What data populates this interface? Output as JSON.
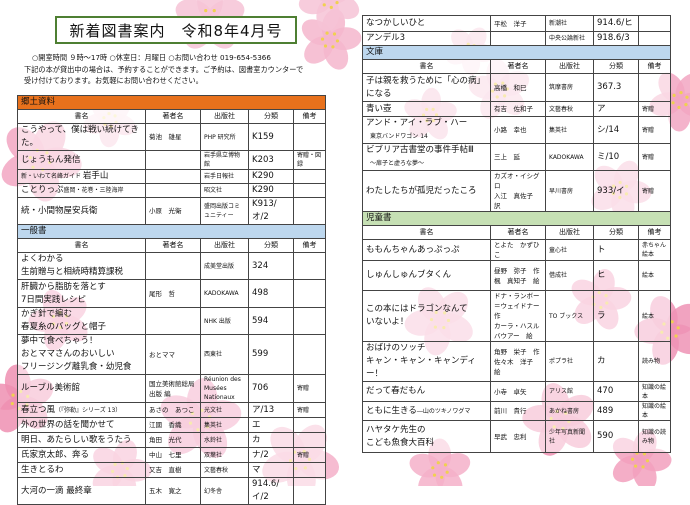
{
  "header": {
    "title": "新着図書案内　令和8年4月号",
    "info_line1": "○開室時間 ９時～17時 ○休室日：月曜日 ○お問い合わせ 019-654-5366",
    "info_line2": "下記の本が貸出中の場合は、予約することができます。ご予約は、図書室カウンターで",
    "info_line3": "受け付けております。お気軽にお問い合わせください。"
  },
  "columns": [
    "書名",
    "著者名",
    "出版社",
    "分類",
    "備考"
  ],
  "colors": {
    "kyodo": "#e8711c",
    "ippan": "#bdd7ee",
    "bunko": "#bdd7ee",
    "jido": "#c6e0b4",
    "title_border": "#4e7f32",
    "sakura": "#f2a0bd"
  },
  "left_sections": [
    {
      "name": "郷土資料",
      "color": "#e8711c",
      "show_header": true,
      "rows": [
        {
          "title": "こうやって、僕は戦い続けてきた。",
          "author": "菊池　雄星",
          "publisher": "PHP 研究所",
          "class": "K159",
          "note": ""
        },
        {
          "title": "じょうもん発信",
          "author": "",
          "publisher": "岩手県立博物館",
          "class": "K203",
          "note": "寄贈・図録"
        },
        {
          "title": "岩手山",
          "title_prefix": "新・いわて名峰ガイド",
          "author": "",
          "publisher": "岩手日報社",
          "class": "K290",
          "note": ""
        },
        {
          "title": "ことりっぷ",
          "title_suffix": "盛岡・花巻・三陸海岸",
          "author": "",
          "publisher": "昭文社",
          "class": "K290",
          "note": ""
        },
        {
          "title": "続・小間物屋安兵衛",
          "author": "小原　光衛",
          "publisher": "盛岡出版コミュニティー",
          "class": "K913/オ/2",
          "note": ""
        }
      ]
    },
    {
      "name": "一般書",
      "color": "#bdd7ee",
      "show_header": true,
      "rows": [
        {
          "title": "よくわかる\n生前贈与と相続時精算課税",
          "author": "",
          "publisher": "成美堂出版",
          "class": "324",
          "note": ""
        },
        {
          "title": "肝臓から脂肪を落とす\n7日間実践レシピ",
          "author": "尾形　哲",
          "publisher": "KADOKAWA",
          "class": "498",
          "note": ""
        },
        {
          "title": "かぎ針で編む\n春夏糸のバッグと帽子",
          "author": "",
          "publisher": "NHK 出版",
          "class": "594",
          "note": ""
        },
        {
          "title": "夢中で食べちゃう！\nおとママさんのおいしい\nフリージング離乳食・幼児食",
          "author": "おとママ",
          "publisher": "西東社",
          "class": "599",
          "note": ""
        },
        {
          "title": "ルーブル美術館",
          "author": "国立美術館総局出版 編",
          "publisher": "Réunion des Musées Nationaux",
          "class": "706",
          "note": "寄贈"
        },
        {
          "title": "春立つ風",
          "title_suffix": "（『弥勒』シリーズ 13）",
          "author": "あさの　あつこ",
          "publisher": "光文社",
          "class": "ア/13",
          "note": "寄贈"
        },
        {
          "title": "外の世界の話を聞かせて",
          "author": "江國　香織",
          "publisher": "集英社",
          "class": "エ",
          "note": ""
        },
        {
          "title": "明日、あたらしい歌をうたう",
          "author": "角田　光代",
          "publisher": "水鈴社",
          "class": "カ",
          "note": ""
        },
        {
          "title": "氏家京太郎、奔る",
          "author": "中山　七里",
          "publisher": "双葉社",
          "class": "ナ/2",
          "note": "寄贈"
        },
        {
          "title": "生きとるわ",
          "author": "又吉　直樹",
          "publisher": "文藝春秋",
          "class": "マ",
          "note": ""
        },
        {
          "title": "大河の一滴 最終章",
          "author": "五木　寛之",
          "publisher": "幻冬舎",
          "class": "914.6/イ/2",
          "note": ""
        }
      ]
    }
  ],
  "right_sections": [
    {
      "name": "",
      "color": "",
      "show_header": false,
      "rows": [
        {
          "title": "なつかしいひと",
          "author": "平松　洋子",
          "publisher": "新潮社",
          "class": "914.6/ヒ",
          "note": ""
        },
        {
          "title": "アンデル3",
          "author": "",
          "publisher": "中央公論新社",
          "class": "918.6/3",
          "note": ""
        }
      ]
    },
    {
      "name": "文庫",
      "color": "#bdd7ee",
      "show_header": true,
      "rows": [
        {
          "title": "子は親を救うために「心の病」になる",
          "author": "高橋　和巳",
          "publisher": "筑摩書房",
          "class": "367.3",
          "note": ""
        },
        {
          "title": "青い壺",
          "author": "有吉　佐和子",
          "publisher": "文藝春秋",
          "class": "ア",
          "note": "寄贈"
        },
        {
          "title": "アンド・アイ・ラブ・ハー",
          "title_sub": "東京バンドワゴン 14",
          "author": "小路　幸也",
          "publisher": "集英社",
          "class": "シ/14",
          "note": "寄贈"
        },
        {
          "title": "ビブリア古書堂の事件手帖Ⅲ",
          "title_sub": "～扉子と虚ろな夢～",
          "author": "三上　延",
          "publisher": "KADOKAWA",
          "class": "ミ/10",
          "note": "寄贈"
        },
        {
          "title": "わたしたちが孤児だったころ",
          "author": "カズオ・イシグロ\n入江　真佐子　訳",
          "publisher": "早川書房",
          "class": "933/イ",
          "note": "寄贈"
        }
      ]
    },
    {
      "name": "児童書",
      "color": "#c6e0b4",
      "show_header": true,
      "rows": [
        {
          "title": "ももんちゃんあっぷっぷ",
          "author": "とよた　かずひこ",
          "publisher": "童心社",
          "class": "ト",
          "note": "赤ちゃん絵本"
        },
        {
          "title": "しゅんしゅんブタくん",
          "author": "昼野　弥子　作\n楓　真知子　絵",
          "publisher": "借成社",
          "class": "ヒ",
          "note": "絵本"
        },
        {
          "title": "この本にはドラゴンなんて\nいないよ！",
          "author": "ドナ・ランボー＝ウェイドナー　作\nカーラ・ハスルバウアー　絵",
          "publisher": "TO ブックス",
          "class": "ラ",
          "note": "絵本"
        },
        {
          "title": "おばけのソッチ\nキャン・キャン・キャンディー！",
          "author": "角野　栄子　作\n佐々木　洋子　絵",
          "publisher": "ポプラ社",
          "class": "カ",
          "note": "読み物"
        },
        {
          "title": "だって春だもん",
          "author": "小寺　卓矢",
          "publisher": "アリス館",
          "class": "470",
          "note": "知識の絵本"
        },
        {
          "title": "ともに生きる",
          "title_suffix": "―山のツキノワグマ",
          "author": "前川　貴行",
          "publisher": "あかね書房",
          "class": "489",
          "note": "知識の絵本"
        },
        {
          "title": "ハヤタケ先生の\nこども魚食大百科",
          "author": "早武　忠利",
          "publisher": "少年写真新聞社",
          "class": "590",
          "note": "知識の読み物"
        }
      ]
    }
  ]
}
